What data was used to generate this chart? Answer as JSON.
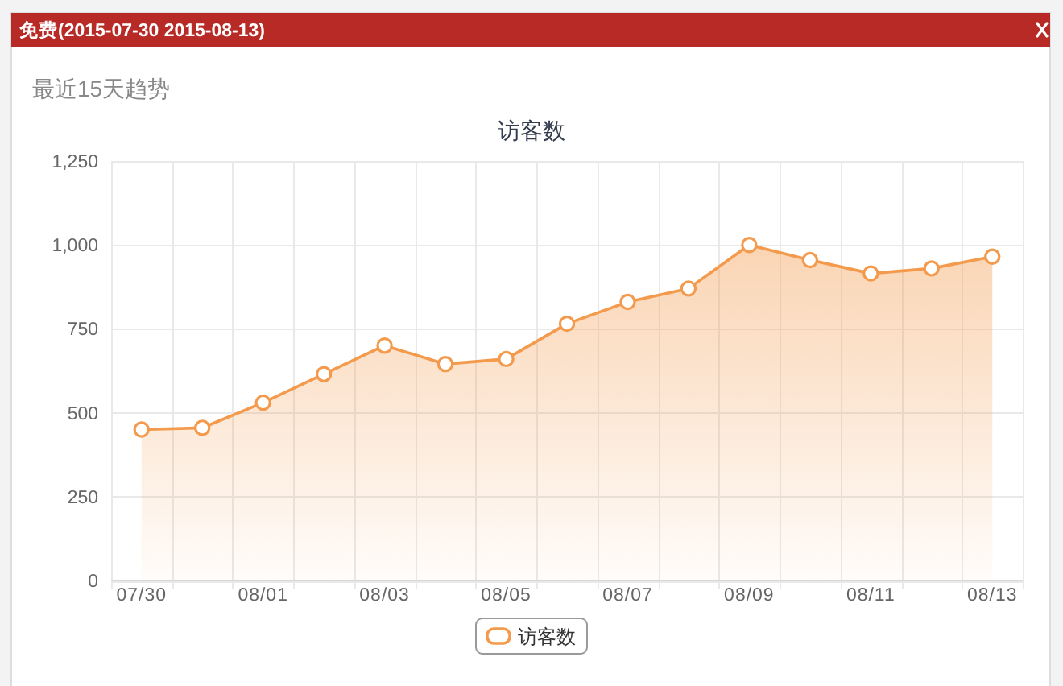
{
  "chart_data": {
    "type": "area",
    "title": "访客数",
    "subtitle": "最近15天趋势",
    "annotations": [
      "免费(2015-07-30 2015-08-13)"
    ],
    "categories": [
      "07/30",
      null,
      "08/01",
      null,
      "08/03",
      null,
      "08/05",
      null,
      "08/07",
      null,
      "08/09",
      null,
      "08/11",
      null,
      "08/13"
    ],
    "series": [
      {
        "name": "访客数",
        "color": "#f39a4c",
        "values": [
          450,
          455,
          530,
          615,
          700,
          645,
          660,
          765,
          830,
          870,
          1000,
          955,
          915,
          930,
          965
        ]
      }
    ],
    "ylim": [
      0,
      1250
    ],
    "yticks": [
      0,
      250,
      500,
      750,
      {
        "value": 1000,
        "label": "1,000"
      },
      {
        "value": 1250,
        "label": "1,250"
      }
    ],
    "grid": true,
    "legend": "bottom",
    "marker": "circle"
  }
}
